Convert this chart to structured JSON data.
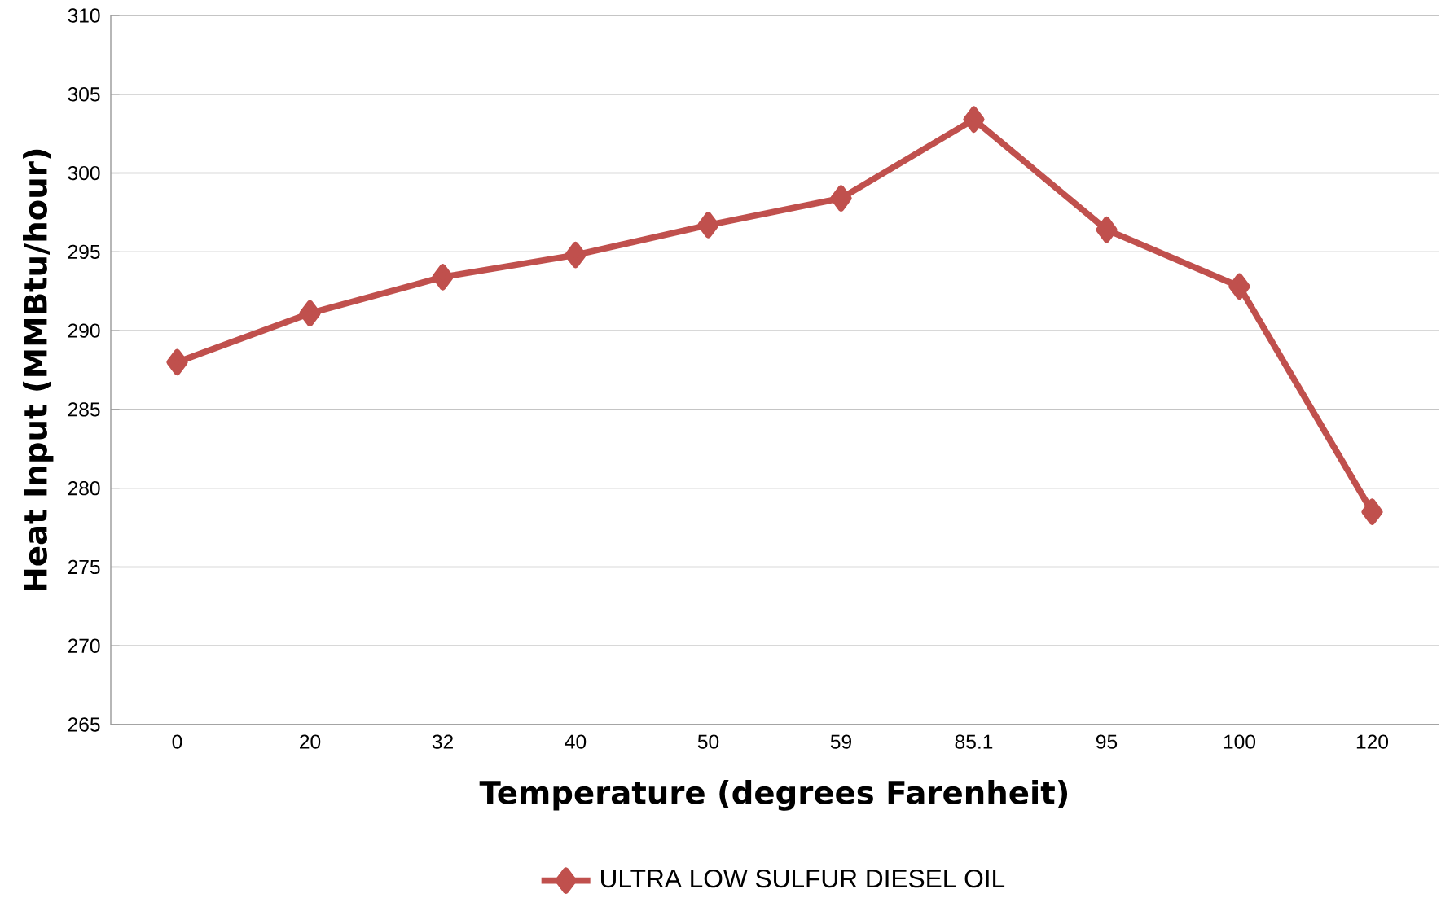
{
  "chart_data": {
    "type": "line",
    "xlabel": "Temperature (degrees Farenheit)",
    "ylabel": "Heat Input (MMBtu/hour)",
    "categories": [
      "0",
      "20",
      "32",
      "40",
      "50",
      "59",
      "85.1",
      "95",
      "100",
      "120"
    ],
    "series": [
      {
        "name": "ULTRA LOW SULFUR DIESEL OIL",
        "color": "#c0504d",
        "values": [
          288.0,
          291.1,
          293.4,
          294.8,
          296.7,
          298.4,
          303.4,
          296.4,
          292.8,
          278.5
        ]
      }
    ],
    "ylim": [
      265,
      310
    ],
    "yticks": [
      265,
      270,
      275,
      280,
      285,
      290,
      295,
      300,
      305,
      310
    ],
    "grid": "y",
    "legend": "bottom",
    "marker": "diamond"
  }
}
